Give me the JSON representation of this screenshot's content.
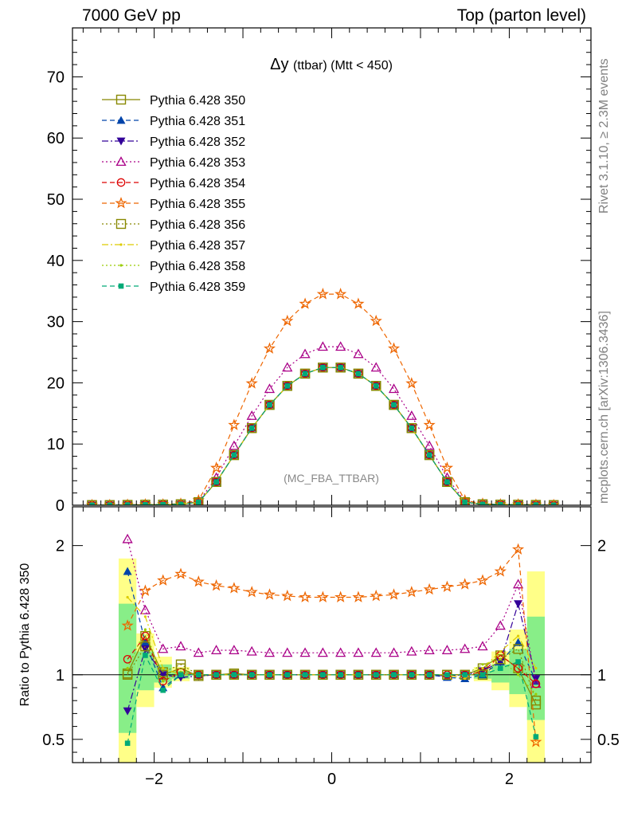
{
  "header": {
    "left": "7000 GeV pp",
    "right": "Top (parton level)"
  },
  "side_labels": {
    "rivet": "Rivet 3.1.10, ≥ 2.3M events",
    "mcplots": "mcplots.cern.ch [arXiv:1306.3436]"
  },
  "chart_data": {
    "type": "line",
    "title": "Δy (ttbar) (Mtt < 450)",
    "title_main": "Δy",
    "title_rest": "(ttbar) (Mtt < 450)",
    "watermark": "(MC_FBA_TTBAR)",
    "xlim": [
      -2.92,
      2.92
    ],
    "ylim": [
      0,
      78
    ],
    "xticks": [
      -2,
      0,
      2
    ],
    "yticks": [
      0,
      10,
      20,
      30,
      40,
      50,
      60,
      70
    ],
    "ratio_ylabel": "Ratio to Pythia 6.428 350",
    "ratio_ylim": [
      0.32,
      2.3
    ],
    "ratio_yticks": [
      0.5,
      1,
      2
    ],
    "x": [
      -2.7,
      -2.5,
      -2.3,
      -2.1,
      -1.9,
      -1.7,
      -1.5,
      -1.3,
      -1.1,
      -0.9,
      -0.7,
      -0.5,
      -0.3,
      -0.1,
      0.1,
      0.3,
      0.5,
      0.7,
      0.9,
      1.1,
      1.3,
      1.5,
      1.7,
      1.9,
      2.1,
      2.3,
      2.5
    ],
    "series": [
      {
        "name": "Pythia 6.428 350",
        "color": "#888800",
        "marker": "square-open",
        "line": "solid",
        "values": [
          0.02,
          0.02,
          0.05,
          0.08,
          0.1,
          0.15,
          0.5,
          3.8,
          8.2,
          12.6,
          16.4,
          19.5,
          21.5,
          22.5,
          22.5,
          21.5,
          19.5,
          16.4,
          12.6,
          8.2,
          3.8,
          0.5,
          0.15,
          0.1,
          0.08,
          0.05,
          0.02
        ],
        "ratio": [
          null,
          null,
          1.01,
          1.3,
          1.0,
          1.05,
          0.99,
          1.0,
          1.01,
          1.0,
          1.0,
          1.0,
          1.0,
          1.0,
          1.0,
          1.0,
          1.0,
          1.0,
          1.0,
          1.0,
          1.0,
          1.0,
          1.05,
          1.15,
          1.05,
          0.77,
          null
        ]
      },
      {
        "name": "Pythia 6.428 351",
        "color": "#0044aa",
        "marker": "triangle-up",
        "line": "dashed",
        "values": [
          0.02,
          0.02,
          0.05,
          0.08,
          0.1,
          0.15,
          0.5,
          3.8,
          8.2,
          12.6,
          16.4,
          19.5,
          21.5,
          22.5,
          22.5,
          21.5,
          19.5,
          16.4,
          12.6,
          8.2,
          3.8,
          0.5,
          0.15,
          0.1,
          0.08,
          0.05,
          0.02
        ],
        "ratio": [
          null,
          null,
          1.8,
          1.25,
          0.9,
          1.0,
          1.0,
          1.0,
          1.0,
          1.0,
          1.0,
          1.0,
          1.0,
          1.0,
          1.0,
          1.0,
          1.0,
          1.0,
          1.0,
          1.0,
          0.98,
          0.97,
          1.0,
          1.1,
          1.25,
          0.95,
          null
        ]
      },
      {
        "name": "Pythia 6.428 352",
        "color": "#330099",
        "marker": "triangle-down",
        "line": "dashdot",
        "values": [
          0.02,
          0.02,
          0.05,
          0.08,
          0.1,
          0.15,
          0.5,
          3.8,
          8.2,
          12.6,
          16.4,
          19.5,
          21.5,
          22.5,
          22.5,
          21.5,
          19.5,
          16.4,
          12.6,
          8.2,
          3.8,
          0.5,
          0.15,
          0.1,
          0.08,
          0.05,
          0.02
        ],
        "ratio": [
          null,
          null,
          0.72,
          1.2,
          1.0,
          0.98,
          0.99,
          1.0,
          1.0,
          1.0,
          1.0,
          1.0,
          1.0,
          1.0,
          1.0,
          1.0,
          1.0,
          1.0,
          1.0,
          1.0,
          0.99,
          1.0,
          1.03,
          1.1,
          1.55,
          0.97,
          null
        ]
      },
      {
        "name": "Pythia 6.428 353",
        "color": "#aa0088",
        "marker": "triangle-up-open",
        "line": "dotted",
        "values": [
          0.02,
          0.02,
          0.08,
          0.1,
          0.12,
          0.2,
          0.6,
          4.5,
          9.7,
          14.6,
          19.0,
          22.5,
          24.7,
          25.9,
          25.9,
          24.7,
          22.5,
          19.0,
          14.6,
          9.7,
          4.5,
          0.6,
          0.2,
          0.12,
          0.1,
          0.08,
          0.02
        ],
        "ratio": [
          null,
          null,
          2.05,
          1.5,
          1.2,
          1.22,
          1.17,
          1.19,
          1.19,
          1.18,
          1.17,
          1.17,
          1.17,
          1.17,
          1.17,
          1.17,
          1.17,
          1.17,
          1.18,
          1.19,
          1.19,
          1.2,
          1.22,
          1.38,
          1.7,
          0.93,
          null
        ]
      },
      {
        "name": "Pythia 6.428 354",
        "color": "#dd0000",
        "marker": "circle-open",
        "line": "dashed",
        "values": [
          0.02,
          0.02,
          0.05,
          0.08,
          0.1,
          0.15,
          0.5,
          3.8,
          8.2,
          12.6,
          16.4,
          19.5,
          21.5,
          22.5,
          22.5,
          21.5,
          19.5,
          16.4,
          12.6,
          8.2,
          3.8,
          0.5,
          0.15,
          0.1,
          0.08,
          0.05,
          0.02
        ],
        "ratio": [
          null,
          null,
          1.12,
          1.3,
          0.95,
          1.02,
          1.0,
          1.0,
          1.0,
          1.0,
          1.0,
          1.0,
          1.0,
          1.0,
          1.0,
          1.0,
          1.0,
          1.0,
          1.0,
          1.0,
          1.0,
          1.0,
          1.02,
          1.15,
          1.05,
          0.93,
          null
        ]
      },
      {
        "name": "Pythia 6.428 355",
        "color": "#ee6600",
        "marker": "star-open",
        "line": "dashed",
        "values": [
          0.03,
          0.03,
          0.08,
          0.12,
          0.15,
          0.25,
          0.8,
          6.1,
          13.1,
          19.9,
          25.6,
          30.1,
          32.9,
          34.5,
          34.5,
          32.9,
          30.1,
          25.6,
          19.9,
          13.1,
          6.1,
          0.8,
          0.25,
          0.15,
          0.12,
          0.08,
          0.03
        ],
        "ratio": [
          null,
          null,
          1.38,
          1.65,
          1.73,
          1.78,
          1.72,
          1.69,
          1.67,
          1.64,
          1.62,
          1.61,
          1.6,
          1.6,
          1.6,
          1.6,
          1.61,
          1.62,
          1.64,
          1.66,
          1.68,
          1.7,
          1.73,
          1.8,
          1.97,
          0.48,
          null
        ]
      },
      {
        "name": "Pythia 6.428 356",
        "color": "#888800",
        "marker": "square-open",
        "line": "dotted",
        "values": [
          0.02,
          0.02,
          0.05,
          0.08,
          0.1,
          0.15,
          0.5,
          3.8,
          8.2,
          12.6,
          16.4,
          19.5,
          21.5,
          22.5,
          22.5,
          21.5,
          19.5,
          16.4,
          12.6,
          8.2,
          3.8,
          0.5,
          0.15,
          0.1,
          0.08,
          0.05,
          0.02
        ],
        "ratio": [
          null,
          null,
          1.0,
          1.22,
          1.02,
          1.08,
          1.0,
          1.0,
          1.0,
          1.0,
          1.0,
          1.0,
          1.0,
          1.0,
          1.0,
          1.0,
          1.0,
          1.0,
          1.0,
          1.0,
          1.0,
          1.0,
          1.0,
          1.12,
          1.2,
          0.8,
          null
        ]
      },
      {
        "name": "Pythia 6.428 357",
        "color": "#ddcc00",
        "marker": "dot",
        "line": "dashdot",
        "values": [
          0.02,
          0.02,
          0.05,
          0.08,
          0.1,
          0.15,
          0.5,
          3.8,
          8.2,
          12.6,
          16.4,
          19.5,
          21.5,
          22.5,
          22.5,
          21.5,
          19.5,
          16.4,
          12.6,
          8.2,
          3.8,
          0.5,
          0.15,
          0.1,
          0.08,
          0.05,
          0.02
        ],
        "ratio": [
          null,
          null,
          1.6,
          1.45,
          1.05,
          1.0,
          1.0,
          1.0,
          1.0,
          1.0,
          1.0,
          1.0,
          1.0,
          1.0,
          1.0,
          1.0,
          1.0,
          1.0,
          1.0,
          1.0,
          1.0,
          0.97,
          1.05,
          1.18,
          1.3,
          1.05,
          null
        ]
      },
      {
        "name": "Pythia 6.428 358",
        "color": "#99cc00",
        "marker": "dot",
        "line": "dotted",
        "values": [
          0.02,
          0.02,
          0.05,
          0.08,
          0.1,
          0.15,
          0.5,
          3.8,
          8.2,
          12.6,
          16.4,
          19.5,
          21.5,
          22.5,
          22.5,
          21.5,
          19.5,
          16.4,
          12.6,
          8.2,
          3.8,
          0.5,
          0.15,
          0.1,
          0.08,
          0.05,
          0.02
        ],
        "ratio": [
          null,
          null,
          1.05,
          1.35,
          0.95,
          1.02,
          1.0,
          1.0,
          1.0,
          1.0,
          1.0,
          1.0,
          1.0,
          1.0,
          1.0,
          1.0,
          1.0,
          1.0,
          1.0,
          1.0,
          1.0,
          1.0,
          1.08,
          1.12,
          1.0,
          0.85,
          null
        ]
      },
      {
        "name": "Pythia 6.428 359",
        "color": "#00aa77",
        "marker": "square-filled",
        "line": "dashed",
        "values": [
          0.02,
          0.02,
          0.05,
          0.08,
          0.1,
          0.15,
          0.5,
          3.8,
          8.2,
          12.6,
          16.4,
          19.5,
          21.5,
          22.5,
          22.5,
          21.5,
          19.5,
          16.4,
          12.6,
          8.2,
          3.8,
          0.5,
          0.15,
          0.1,
          0.08,
          0.05,
          0.02
        ],
        "ratio": [
          null,
          null,
          0.47,
          1.15,
          0.88,
          1.0,
          1.0,
          1.0,
          1.0,
          1.0,
          1.0,
          1.0,
          1.0,
          1.0,
          1.0,
          1.0,
          1.0,
          1.0,
          1.0,
          1.0,
          1.0,
          1.0,
          1.0,
          1.05,
          1.1,
          0.52,
          null
        ]
      }
    ],
    "uncertainty_band": {
      "x_edges": [
        [
          -2.4,
          -2.2
        ],
        [
          -2.2,
          -2.0
        ],
        [
          -2.0,
          -1.8
        ],
        [
          -1.8,
          -1.6
        ],
        [
          1.6,
          1.8
        ],
        [
          1.8,
          2.0
        ],
        [
          2.0,
          2.2
        ],
        [
          2.2,
          2.4
        ]
      ],
      "inner": [
        [
          0.55,
          1.55
        ],
        [
          0.88,
          1.18
        ],
        [
          0.94,
          1.08
        ],
        [
          0.97,
          1.03
        ],
        [
          0.97,
          1.03
        ],
        [
          0.94,
          1.08
        ],
        [
          0.85,
          1.2
        ],
        [
          0.65,
          1.45
        ]
      ],
      "outer": [
        [
          0.32,
          1.9
        ],
        [
          0.75,
          1.32
        ],
        [
          0.9,
          1.14
        ],
        [
          0.95,
          1.06
        ],
        [
          0.95,
          1.06
        ],
        [
          0.88,
          1.18
        ],
        [
          0.75,
          1.35
        ],
        [
          0.32,
          1.8
        ]
      ],
      "inner_color": "#88ee88",
      "outer_color": "#ffff88"
    }
  }
}
